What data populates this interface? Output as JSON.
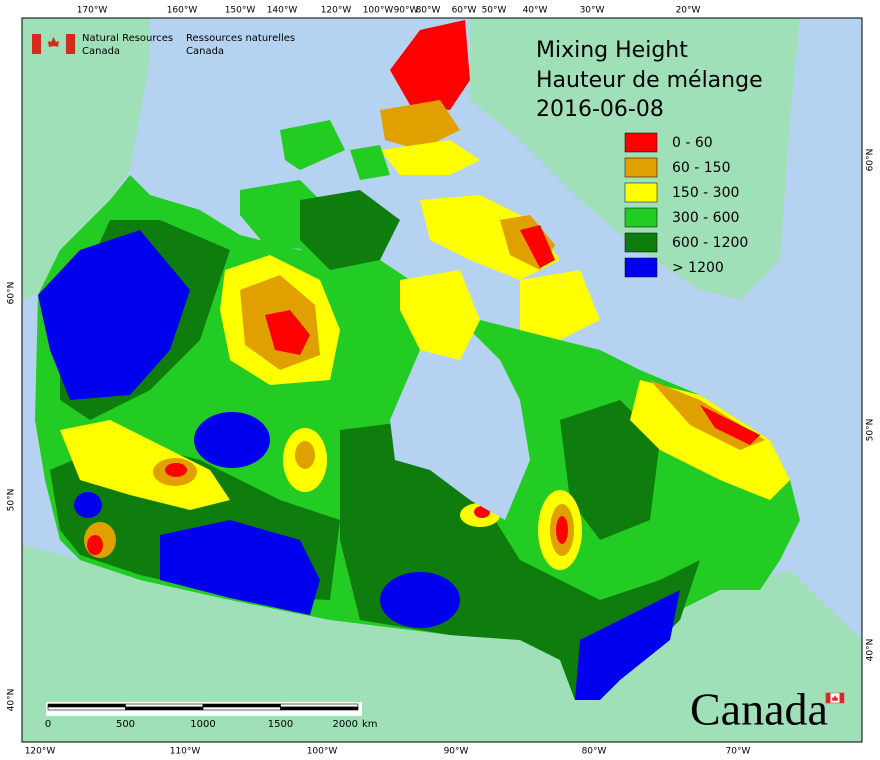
{
  "agency": {
    "en": [
      "Natural Resources",
      "Canada"
    ],
    "fr": [
      "Ressources naturelles",
      "Canada"
    ]
  },
  "title": [
    "Mixing Height",
    "Hauteur de mélange",
    "2016-06-08"
  ],
  "legend": [
    {
      "label": "0 - 60",
      "color": "#ff0000"
    },
    {
      "label": "60 - 150",
      "color": "#e0a000"
    },
    {
      "label": "150 - 300",
      "color": "#ffff00"
    },
    {
      "label": "300 - 600",
      "color": "#22cc22"
    },
    {
      "label": "600 - 1200",
      "color": "#0e7d0e"
    },
    {
      "label": "> 1200",
      "color": "#0000ee"
    }
  ],
  "graticule": {
    "top": [
      "170°W",
      "160°W",
      "150°W",
      "140°W",
      "120°W",
      "100°W",
      "90°W",
      "80°W",
      "60°W",
      "50°W",
      "40°W",
      "30°W",
      "20°W"
    ],
    "bottom": [
      "120°W",
      "110°W",
      "100°W",
      "90°W",
      "80°W",
      "70°W"
    ],
    "left": [
      "60°N",
      "50°N",
      "40°N"
    ],
    "right": [
      "60°N",
      "50°N",
      "40°N"
    ]
  },
  "scale": {
    "labels": [
      "0",
      "500",
      "1000",
      "1500",
      "2000"
    ],
    "unit": "km"
  },
  "wordmark": "Canada"
}
